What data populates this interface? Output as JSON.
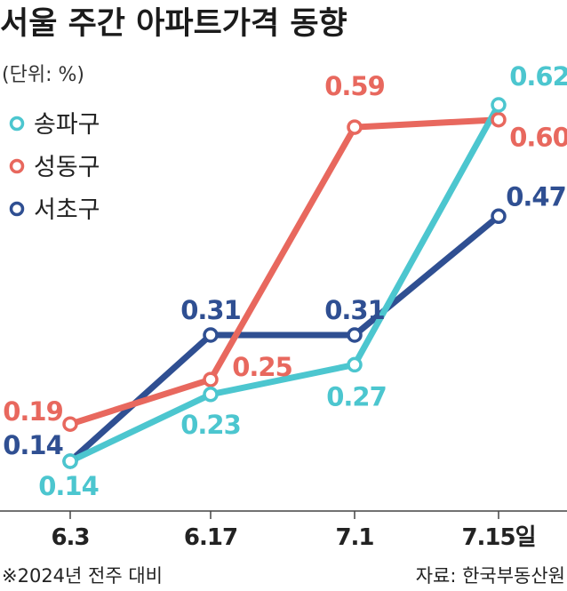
{
  "chart_data": {
    "type": "line",
    "title": "서울 주간 아파트가격 동향",
    "unit_label": "(단위: %)",
    "categories": [
      "6.3",
      "6.17",
      "7.1",
      "7.15"
    ],
    "x_suffix": "일",
    "series": [
      {
        "name": "송파구",
        "color": "#4cc6cf",
        "values": [
          0.14,
          0.23,
          0.27,
          0.62
        ],
        "labels": [
          "0.14",
          "0.23",
          "0.27",
          "0.62"
        ]
      },
      {
        "name": "성동구",
        "color": "#e8685e",
        "values": [
          0.19,
          0.25,
          0.59,
          0.6
        ],
        "labels": [
          "0.19",
          "0.25",
          "0.59",
          "0.60"
        ]
      },
      {
        "name": "서초구",
        "color": "#2f4f92",
        "values": [
          0.14,
          0.31,
          0.31,
          0.47
        ],
        "labels": [
          "0.14",
          "0.31",
          "0.31",
          "0.47"
        ]
      }
    ],
    "ylim": [
      0.14,
      0.62
    ],
    "legend_position": "top-left",
    "grid": false
  },
  "footer": {
    "note": "※2024년 전주 대비",
    "source": "자료: 한국부동산원"
  }
}
